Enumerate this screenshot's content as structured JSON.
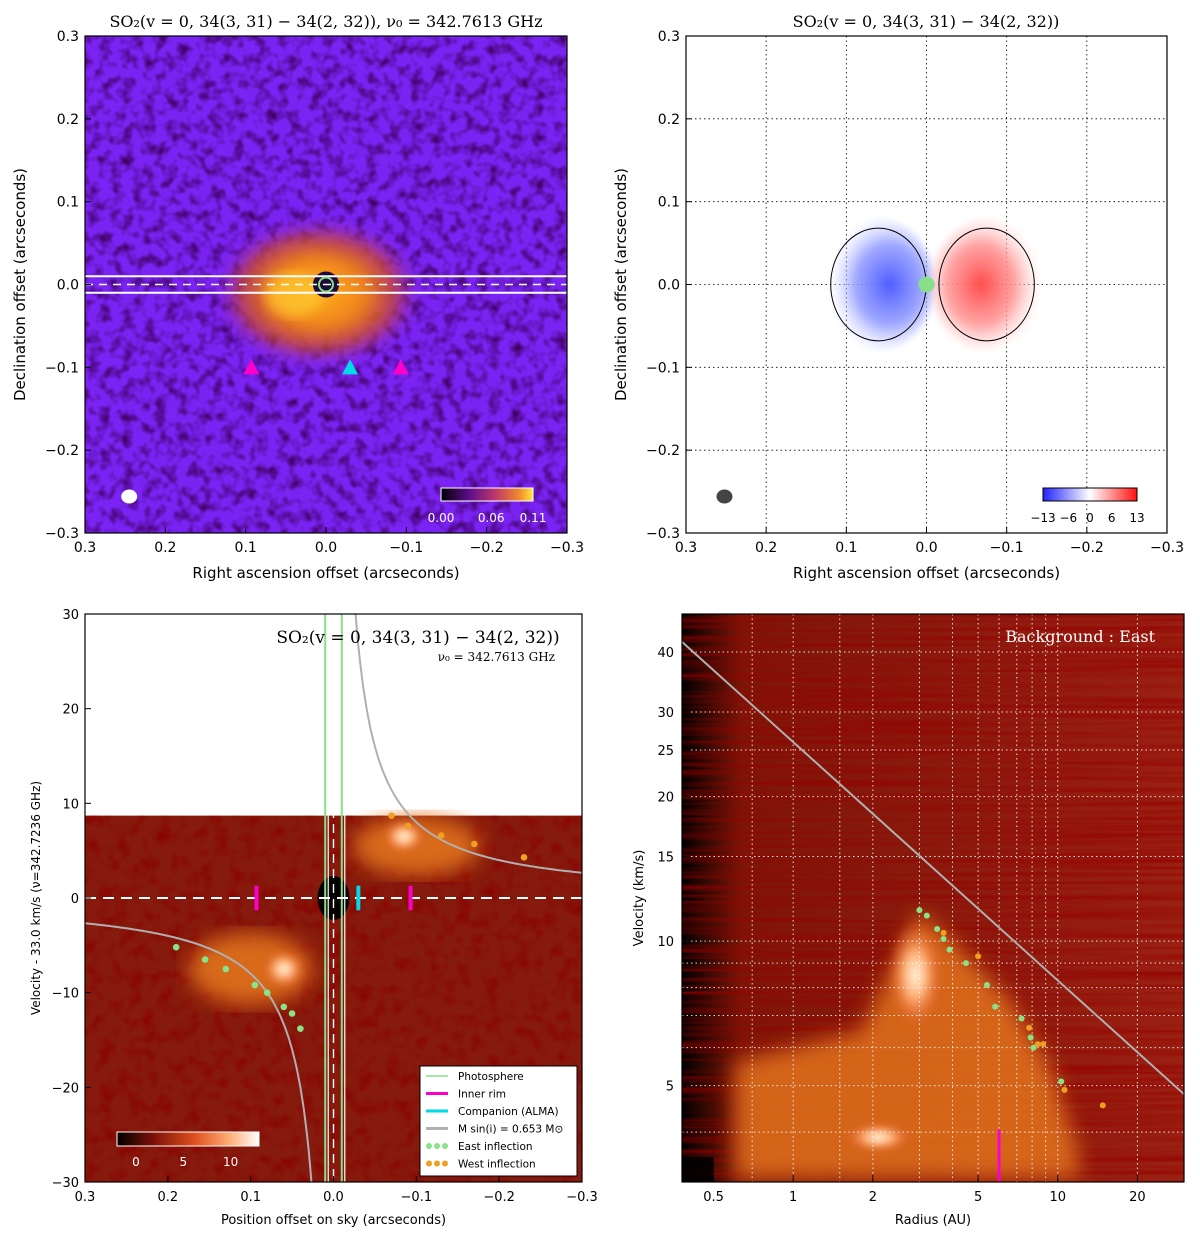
{
  "colors": {
    "bg_purple": "#7a23f2",
    "emission_orange": "#e1731e",
    "photosphere": "#87e087",
    "inner_rim": "#ff00cc",
    "companion": "#00d9e6",
    "model_curve": "#b0b0b0",
    "east_inflection": "#88e288",
    "west_inflection": "#f0a020",
    "velocity_blue": "#3344ff",
    "velocity_red": "#ff2222"
  },
  "chart_data": [
    {
      "id": "panel-a",
      "type": "heatmap",
      "title": "SO$_2$(v = 0, 34(3,31) − 34(2,32)), ν₀ = 342.7613 GHz",
      "title_text": "SO₂(v = 0,  34(3, 31) − 34(2, 32)), ν₀ = 342.7613 GHz",
      "xlabel": "Right ascension offset (arcseconds)",
      "ylabel": "Declination offset (arcseconds)",
      "xlim": [
        0.3,
        -0.3
      ],
      "ylim": [
        -0.3,
        0.3
      ],
      "xticks": [
        "0.3",
        "0.2",
        "0.1",
        "0.0",
        "−0.1",
        "−0.2",
        "−0.3"
      ],
      "xtick_values": [
        0.3,
        0.2,
        0.1,
        0.0,
        -0.1,
        -0.2,
        -0.3
      ],
      "yticks": [
        "−0.3",
        "−0.2",
        "−0.1",
        "0.0",
        "0.1",
        "0.2",
        "0.3"
      ],
      "ytick_values": [
        -0.3,
        -0.2,
        -0.1,
        0.0,
        0.1,
        0.2,
        0.3
      ],
      "colorbar": {
        "ticks": [
          "0.00",
          "0.06",
          "0.11"
        ],
        "min": 0.0,
        "max": 0.11
      },
      "slit_dec": [
        0.01,
        -0.01
      ],
      "emission": {
        "center_ra": 0.01,
        "center_dec": -0.01,
        "ra_half_width": 0.13,
        "dec_half_width": 0.09
      },
      "markers": [
        {
          "kind": "magenta",
          "ra": 0.093,
          "dec": -0.1
        },
        {
          "kind": "cyan",
          "ra": -0.03,
          "dec": -0.1
        },
        {
          "kind": "magenta",
          "ra": -0.093,
          "dec": -0.1
        }
      ],
      "beam": {
        "ra": 0.245,
        "dec": -0.256
      }
    },
    {
      "id": "panel-b",
      "type": "heatmap",
      "title_text": "SO₂(v = 0,  34(3, 31) − 34(2, 32))",
      "xlabel": "Right ascension offset (arcseconds)",
      "ylabel": "Declination offset (arcseconds)",
      "xlim": [
        0.3,
        -0.3
      ],
      "ylim": [
        -0.3,
        0.3
      ],
      "xticks": [
        "0.3",
        "0.2",
        "0.1",
        "0.0",
        "−0.1",
        "−0.2",
        "−0.3"
      ],
      "xtick_values": [
        0.3,
        0.2,
        0.1,
        0.0,
        -0.1,
        -0.2,
        -0.3
      ],
      "yticks": [
        "−0.3",
        "−0.2",
        "−0.1",
        "0.0",
        "0.1",
        "0.2",
        "0.3"
      ],
      "ytick_values": [
        -0.3,
        -0.2,
        -0.1,
        0.0,
        0.1,
        0.2,
        0.3
      ],
      "grid": true,
      "colorbar": {
        "ticks": [
          "−13",
          "−6",
          "0",
          "6",
          "13"
        ],
        "min": -13,
        "max": 13
      },
      "blue_lobe": {
        "ra": 0.06,
        "dec": 0.0,
        "ra_half_width": 0.07,
        "dec_half_width": 0.08
      },
      "red_lobe": {
        "ra": -0.075,
        "dec": 0.0,
        "ra_half_width": 0.07,
        "dec_half_width": 0.08
      },
      "star": {
        "ra": 0.0,
        "dec": 0.0
      },
      "beam": {
        "ra": 0.252,
        "dec": -0.256
      }
    },
    {
      "id": "panel-c",
      "type": "heatmap",
      "title_text": "SO₂(v = 0,  34(3, 31) − 34(2, 32))",
      "subtitle": "ν₀ = 342.7613 GHz",
      "xlabel": "Position offset on sky (arcseconds)",
      "ylabel": "Velocity - 33.0 km/s (ν=342.7236 GHz)",
      "xlim": [
        0.3,
        -0.3
      ],
      "ylim": [
        -30,
        30
      ],
      "xticks": [
        "0.3",
        "0.2",
        "0.1",
        "0.0",
        "−0.1",
        "−0.2",
        "−0.3"
      ],
      "xtick_values": [
        0.3,
        0.2,
        0.1,
        0.0,
        -0.1,
        -0.2,
        -0.3
      ],
      "yticks": [
        "−30",
        "−20",
        "−10",
        "0",
        "10",
        "20",
        "30"
      ],
      "ytick_values": [
        -30,
        -20,
        -10,
        0,
        10,
        20,
        30
      ],
      "data_vmax": 8.7,
      "photosphere_x": [
        0.01,
        -0.01
      ],
      "inner_rim_x": [
        0.093,
        -0.093
      ],
      "companion_x": -0.03,
      "model_k": 0.8,
      "colorbar": {
        "ticks": [
          "0",
          "5",
          "10"
        ],
        "min": -2,
        "max": 13
      },
      "east_inflection": [
        [
          0.19,
          -5.2
        ],
        [
          0.155,
          -6.5
        ],
        [
          0.13,
          -7.5
        ],
        [
          0.095,
          -9.2
        ],
        [
          0.08,
          -10.0
        ],
        [
          0.06,
          -11.5
        ],
        [
          0.05,
          -12.2
        ],
        [
          0.04,
          -13.8
        ]
      ],
      "west_inflection": [
        [
          -0.07,
          8.7
        ],
        [
          -0.09,
          7.6
        ],
        [
          -0.13,
          6.6
        ],
        [
          -0.17,
          5.7
        ],
        [
          -0.23,
          4.3
        ]
      ],
      "legend": [
        {
          "label": "Photosphere",
          "kind": "line",
          "color": "#87e087"
        },
        {
          "label": "Inner rim",
          "kind": "line",
          "color": "#ff00cc"
        },
        {
          "label": "Companion (ALMA)",
          "kind": "line",
          "color": "#00d9e6"
        },
        {
          "label": "M sin(i) = 0.653 M⊙",
          "kind": "line",
          "color": "#b0b0b0"
        },
        {
          "label": "East inflection",
          "kind": "dots",
          "color": "#88e288"
        },
        {
          "label": "West inflection",
          "kind": "dots",
          "color": "#f0a020"
        }
      ]
    },
    {
      "id": "panel-d",
      "type": "heatmap",
      "annotation": "Background : East",
      "xlabel": "Radius (AU)",
      "ylabel": "Velocity (km/s)",
      "xscale": "log",
      "yscale": "log",
      "xlim": [
        0.38,
        30
      ],
      "ylim": [
        3.15,
        48
      ],
      "xticks": [
        "0.5",
        "1",
        "2",
        "5",
        "10",
        "20"
      ],
      "xtick_values": [
        0.5,
        1,
        2,
        5,
        10,
        20
      ],
      "yticks": [
        "5",
        "10",
        "15",
        "20",
        "25",
        "30",
        "40"
      ],
      "ytick_values": [
        5,
        10,
        15,
        20,
        25,
        30,
        40
      ],
      "grid": true,
      "keplerian_line": [
        [
          0.38,
          42.0
        ],
        [
          30,
          4.8
        ]
      ],
      "inner_rim_radius": 6.0,
      "inner_rim_vrange": [
        3.15,
        4.05
      ],
      "east_inflection": [
        [
          3.0,
          11.6
        ],
        [
          3.2,
          11.3
        ],
        [
          3.5,
          10.6
        ],
        [
          3.7,
          10.1
        ],
        [
          3.9,
          9.6
        ],
        [
          4.5,
          9.0
        ],
        [
          5.4,
          8.1
        ],
        [
          5.8,
          7.3
        ],
        [
          7.3,
          6.9
        ],
        [
          7.9,
          6.3
        ],
        [
          8.1,
          6.0
        ],
        [
          10.3,
          5.1
        ]
      ],
      "west_inflection": [
        [
          3.7,
          10.4
        ],
        [
          5.0,
          9.3
        ],
        [
          7.8,
          6.6
        ],
        [
          8.4,
          6.1
        ],
        [
          8.8,
          6.1
        ],
        [
          10.6,
          4.9
        ],
        [
          14.8,
          4.55
        ]
      ]
    }
  ]
}
